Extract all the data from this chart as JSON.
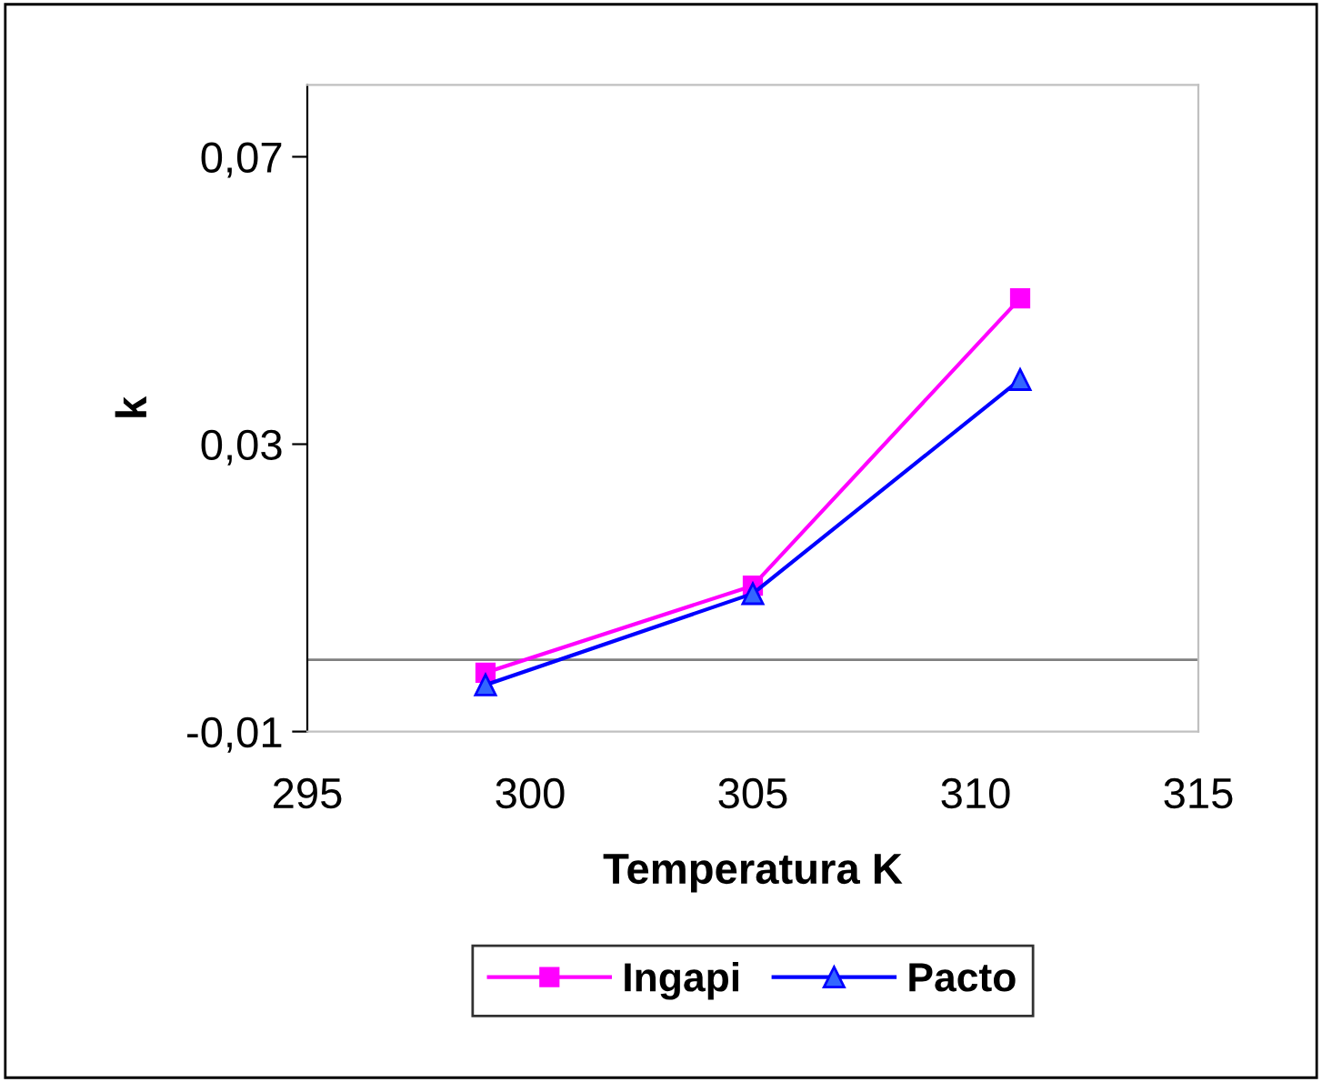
{
  "chart_data": {
    "type": "line",
    "xlabel": "Temperatura K",
    "ylabel": "k",
    "x": [
      299,
      305,
      311
    ],
    "series": [
      {
        "name": "Ingapi",
        "color": "#ff00ff",
        "marker": "square",
        "values": [
          -0.0018,
          0.0103,
          0.0503
        ]
      },
      {
        "name": "Pacto",
        "color": "#0000ff",
        "marker": "triangle",
        "values": [
          -0.0035,
          0.0092,
          0.039
        ]
      }
    ],
    "xlim": [
      295,
      315
    ],
    "xticks": [
      295,
      300,
      305,
      310,
      315
    ],
    "ylim": [
      -0.01,
      0.08
    ],
    "yticks": [
      {
        "value": -0.01,
        "label": "-0,01"
      },
      {
        "value": 0.03,
        "label": "0,03"
      },
      {
        "value": 0.07,
        "label": "0,07"
      }
    ],
    "ref_lines": [
      {
        "axis": "y",
        "value": 0,
        "color": "#808080"
      }
    ],
    "grid": false,
    "legend": "bottom"
  }
}
